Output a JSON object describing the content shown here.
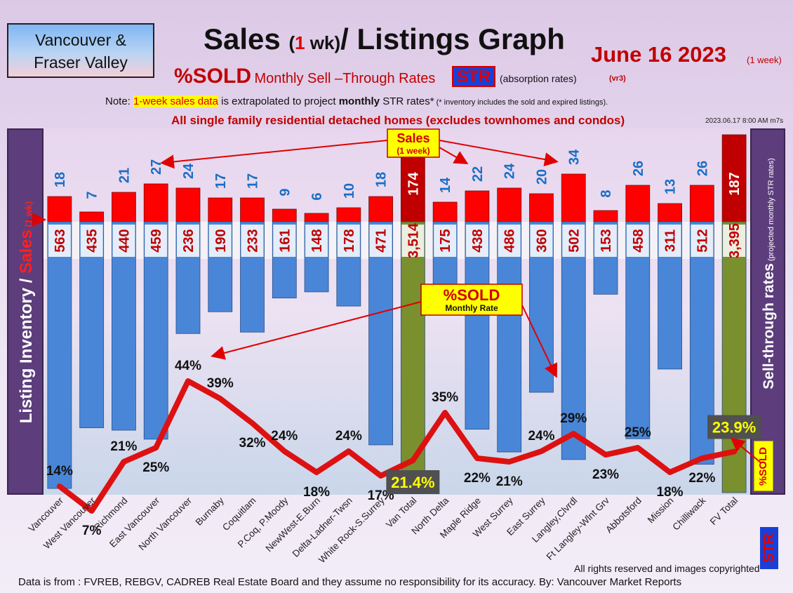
{
  "header": {
    "region_line1": "Vancouver &",
    "region_line2": "Fraser Valley",
    "title_a": "Sales ",
    "title_paren_open": "(",
    "title_one": "1",
    "title_wk": " wk)",
    "title_b": "/ Listings Graph",
    "date": "June 16  2023",
    "date_note": "(1 week)",
    "sold_big": "%SOLD",
    "sold_desc_html": "Monthly Sell –Through Rates",
    "str_badge": "STR",
    "absorption": "(absorption rates)",
    "version": "(vr3)",
    "note_prefix": "Note: ",
    "note_highlight": "1-week sales data",
    "note_mid": " is extrapolated to project ",
    "note_bold": "monthly",
    "note_end": " STR rates*",
    "note_small": " (* inventory includes the sold and expired listings).",
    "subtitle": "All single family residential detached homes (excludes townhomes and condos)",
    "stamp": "2023.06.17 8:00 AM m7s"
  },
  "side": {
    "left_main": "Listing Inventory ",
    "left_slash": "/ ",
    "left_sales": "Sales",
    "left_wk": " (1 wk)",
    "right_main": "Sell-through rates",
    "right_small": " (projected monthly STR rates)",
    "right_str": "STR",
    "right_sold": "%SOLD"
  },
  "callouts": {
    "sales_label": "Sales",
    "sales_sub": "(1 week)",
    "sold_label": "%SOLD",
    "sold_sub": "Monthly Rate"
  },
  "chart_data": {
    "type": "bar",
    "categories": [
      "Vancouver",
      "West Vancouver",
      "Richmond",
      "East Vancouver",
      "North Vancouver",
      "Burnaby",
      "Coquitlam",
      "P.Coq, P.Moody",
      "NewWest-E.Burn",
      "Delta-Ladner-Twsn",
      "White Rock-S.Surrey",
      "Van Total",
      "North Delta",
      "Maple Ridge",
      "West Surrey",
      "East Surrey",
      "Langley,Clvrdl",
      "Ft Langley-Wlnt Grv",
      "Abbotsford",
      "Mission",
      "Chilliwack",
      "FV Total"
    ],
    "series": [
      {
        "name": "Sales",
        "values": [
          18,
          7,
          21,
          27,
          24,
          17,
          17,
          9,
          6,
          10,
          18,
          174,
          14,
          22,
          24,
          20,
          34,
          8,
          26,
          13,
          26,
          187
        ]
      },
      {
        "name": "Listing Inventory",
        "values": [
          563,
          435,
          440,
          459,
          236,
          190,
          233,
          161,
          148,
          178,
          471,
          3514,
          175,
          438,
          486,
          360,
          502,
          153,
          458,
          311,
          512,
          3395
        ]
      },
      {
        "name": "%SOLD",
        "values": [
          14,
          7,
          21,
          25,
          44,
          39,
          32,
          24,
          18,
          24,
          17,
          21.4,
          35,
          22,
          21,
          24,
          29,
          23,
          25,
          18,
          22,
          23.9
        ]
      }
    ],
    "sales_labels": [
      "18",
      "7",
      "21",
      "27",
      "24",
      "17",
      "17",
      "9",
      "6",
      "10",
      "18",
      "174",
      "14",
      "22",
      "24",
      "20",
      "34",
      "8",
      "26",
      "13",
      "26",
      "187"
    ],
    "listing_labels": [
      "563",
      "435",
      "440",
      "459",
      "236",
      "190",
      "233",
      "161",
      "148",
      "178",
      "471",
      "3,514",
      "175",
      "438",
      "486",
      "360",
      "502",
      "153",
      "458",
      "311",
      "512",
      "3,395"
    ],
    "sold_labels": [
      "14%",
      "7%",
      "21%",
      "25%",
      "44%",
      "39%",
      "32%",
      "24%",
      "18%",
      "24%",
      "17%",
      "21.4%",
      "35%",
      "22%",
      "21%",
      "24%",
      "29%",
      "23%",
      "25%",
      "18%",
      "22%",
      "23.9%"
    ],
    "totals": [
      "Van Total",
      "FV Total"
    ],
    "colors": {
      "sales": "#ff0000",
      "listing": "#4a86d8",
      "total_sales": "#c00000",
      "total_listing": "#7a8f2e",
      "line": "#dd1111",
      "sales_text": "#1a6fc4"
    }
  },
  "footer": {
    "rights": "All rights reserved and  images copyrighted",
    "source": "Data is from : FVREB, REBGV, CADREB Real Estate Board and they assume no responsibility for its accuracy. By: Vancouver Market Reports"
  }
}
